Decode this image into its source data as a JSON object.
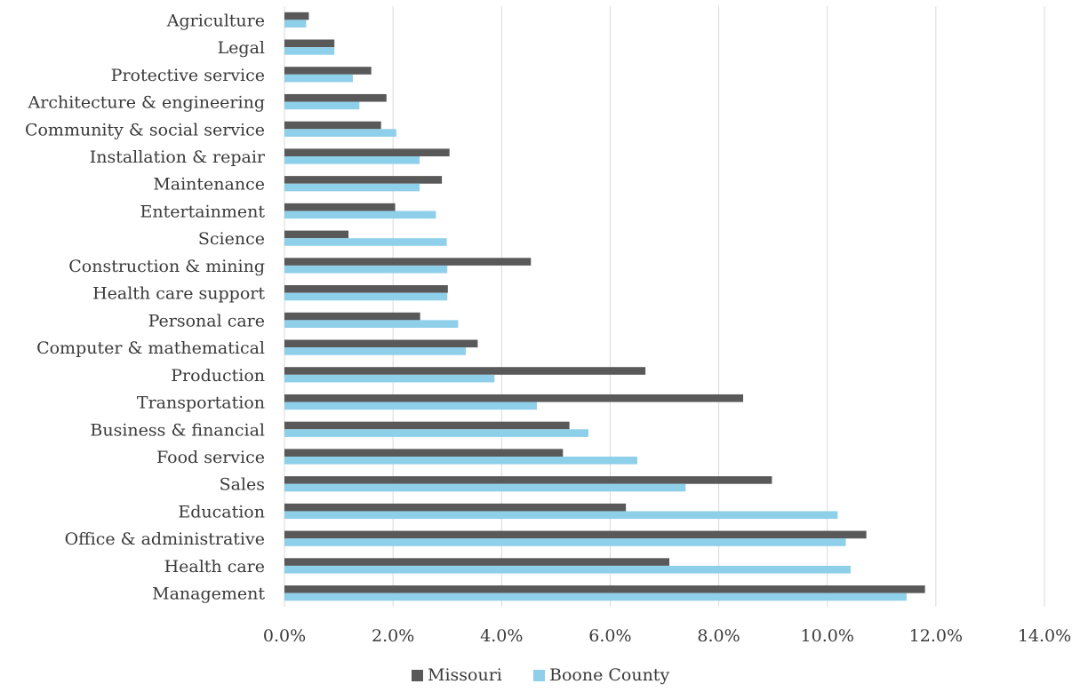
{
  "chart_data": {
    "type": "bar",
    "orientation": "horizontal",
    "categories": [
      "Agriculture",
      "Legal",
      "Protective service",
      "Architecture & engineering",
      "Community & social service",
      "Installation & repair",
      "Maintenance",
      "Entertainment",
      "Science",
      "Construction & mining",
      "Health care support",
      "Personal care",
      "Computer & mathematical",
      "Production",
      "Transportation",
      "Business & financial",
      "Food service",
      "Sales",
      "Education",
      "Office & administrative",
      "Health care",
      "Management"
    ],
    "series": [
      {
        "name": "Missouri",
        "color": "#595959",
        "values": [
          0.45,
          0.92,
          1.6,
          1.88,
          1.78,
          3.04,
          2.9,
          2.04,
          1.18,
          4.54,
          3.01,
          2.5,
          3.56,
          6.65,
          8.45,
          5.25,
          5.13,
          8.98,
          6.29,
          10.72,
          7.09,
          11.8
        ]
      },
      {
        "name": "Boone County",
        "color": "#8ecfea",
        "values": [
          0.4,
          0.92,
          1.26,
          1.38,
          2.06,
          2.49,
          2.49,
          2.79,
          2.99,
          3.0,
          3.0,
          3.2,
          3.34,
          3.87,
          4.65,
          5.6,
          6.5,
          7.39,
          10.19,
          10.34,
          10.43,
          11.46
        ]
      }
    ],
    "xticks": [
      "0.0%",
      "2.0%",
      "4.0%",
      "6.0%",
      "8.0%",
      "10.0%",
      "12.0%",
      "14.0%"
    ],
    "xlim": [
      0,
      14
    ],
    "grid": true,
    "legend_position": "bottom",
    "title": "",
    "xlabel": "",
    "ylabel": ""
  }
}
